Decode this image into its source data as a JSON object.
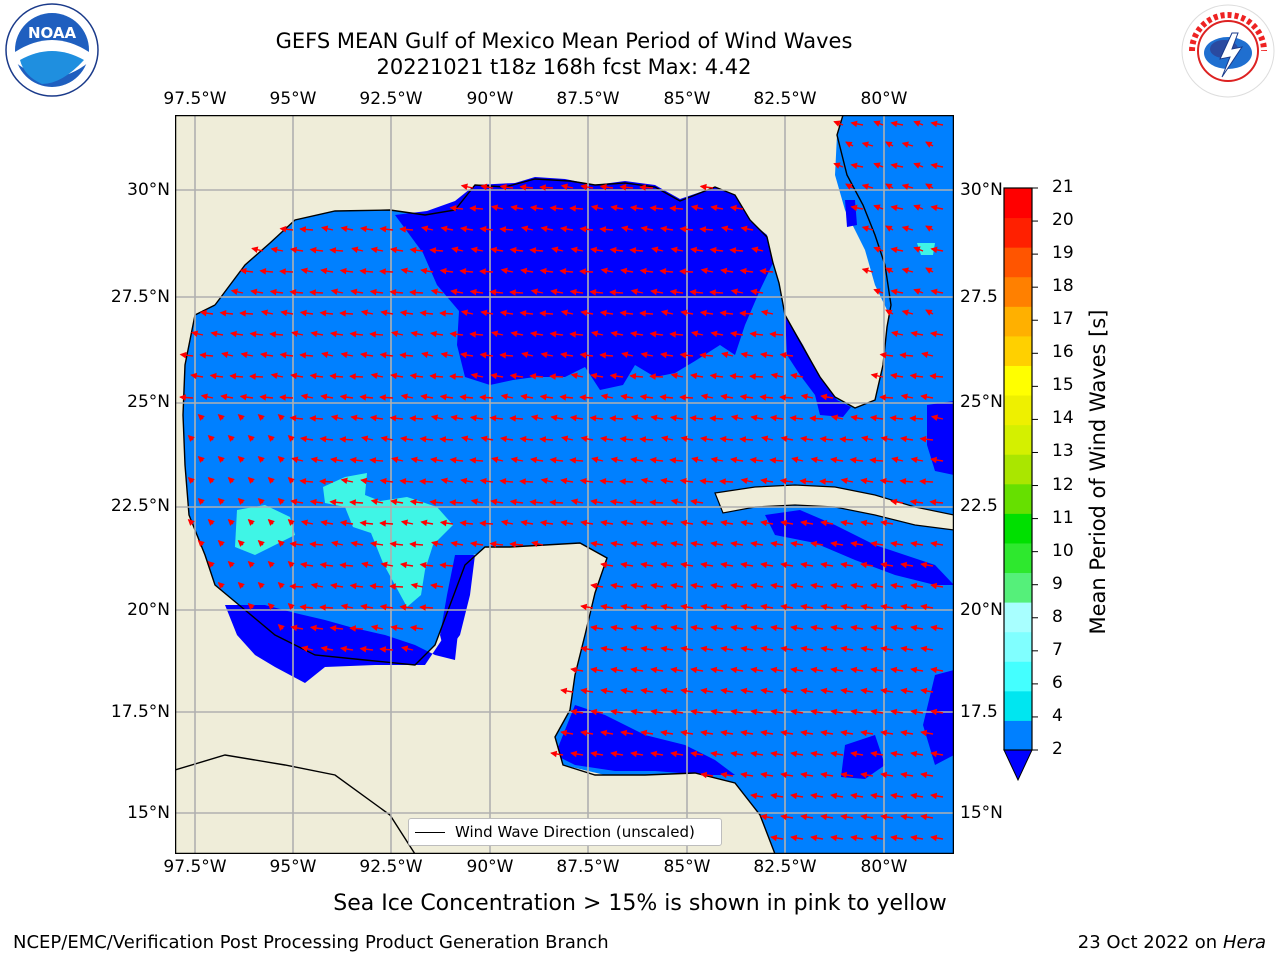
{
  "header": {
    "title_line1": "GEFS MEAN Gulf of Mexico Mean Period of Wind Waves",
    "title_line2": "20221021 t18z 168h fcst   Max: 4.42",
    "left_logo": "NOAA",
    "left_logo_ring_text": "NATIONAL OCEANIC AND ATMOSPHERIC ADMINISTRATION · U.S. DEPARTMENT OF COMMERCE",
    "right_logo_ring_text": "NATIONAL WEATHER SERVICE"
  },
  "map": {
    "lon_labels": [
      "97.5°W",
      "95°W",
      "92.5°W",
      "90°W",
      "87.5°W",
      "85°W",
      "82.5°W",
      "80°W"
    ],
    "lat_labels_left": [
      "30°N",
      "27.5°N",
      "25°N",
      "22.5°N",
      "20°N",
      "17.5°N",
      "15°N"
    ],
    "lat_labels_right": [
      "30°N",
      "27.5",
      "25°N",
      "22.5",
      "20°N",
      "17.5",
      "15°N"
    ],
    "lon_range": [
      -98,
      -78.25
    ],
    "lat_range": [
      14,
      31.75
    ],
    "colors": {
      "land": "#efedd9",
      "period_2_4": "#0080ff",
      "period_below_2": "#0000ff",
      "period_4_6": "#3ff5e6",
      "arrows": "#ff0000",
      "grid": "#b0b0b0"
    },
    "legend_label": "Wind Wave Direction (unscaled)"
  },
  "colorbar": {
    "label": "Mean Period of Wind Waves [s]",
    "ticks": [
      "2",
      "4",
      "6",
      "7",
      "8",
      "9",
      "10",
      "11",
      "12",
      "13",
      "14",
      "15",
      "16",
      "17",
      "18",
      "19",
      "20",
      "21"
    ],
    "colors": [
      "#0080ff",
      "#00e6f0",
      "#44ffff",
      "#80ffff",
      "#a8ffff",
      "#55f07a",
      "#2ee82e",
      "#00e000",
      "#66e000",
      "#aae600",
      "#d4f000",
      "#eef000",
      "#ffff00",
      "#ffd000",
      "#ffb000",
      "#ff8000",
      "#ff5500",
      "#ff2000",
      "#ff0000"
    ],
    "extend_color": "#0000ff"
  },
  "footer": {
    "sea_ice_note": "Sea Ice Concentration > 15% is shown in pink to yellow",
    "left": "NCEP/EMC/Verification Post Processing Product Generation Branch",
    "date": "23 Oct 2022 on",
    "machine": "Hera"
  }
}
